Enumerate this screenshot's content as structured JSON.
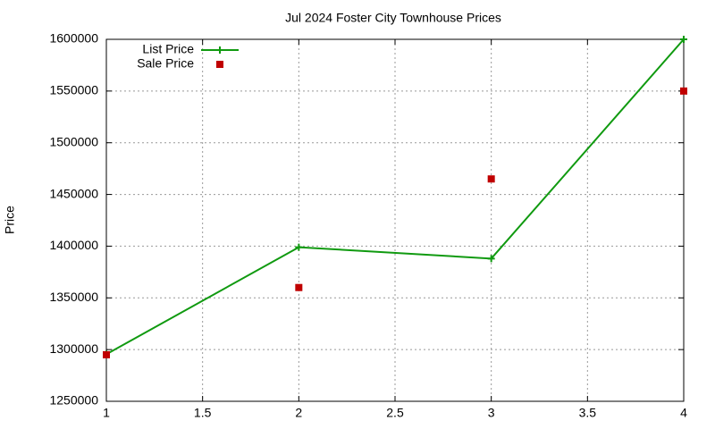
{
  "chart_data": {
    "type": "line",
    "title": "Jul 2024 Foster City Townhouse Prices",
    "y_label": "Price",
    "x": [
      1,
      2,
      3,
      4
    ],
    "series": [
      {
        "name": "List Price",
        "color": "#109a10",
        "mode": "linespoints",
        "values": [
          1295500,
          1399000,
          1388000,
          1600000
        ]
      },
      {
        "name": "Sale Price",
        "color": "#c00000",
        "mode": "points",
        "values": [
          1295000,
          1360000,
          1465000,
          1550000
        ]
      }
    ],
    "xlim": [
      1,
      4
    ],
    "xticks": [
      1,
      1.5,
      2,
      2.5,
      3,
      3.5,
      4
    ],
    "ylim": [
      1250000,
      1600000
    ],
    "yticks": [
      1250000,
      1300000,
      1350000,
      1400000,
      1450000,
      1500000,
      1550000,
      1600000
    ],
    "grid": true,
    "legend": "top-left"
  }
}
